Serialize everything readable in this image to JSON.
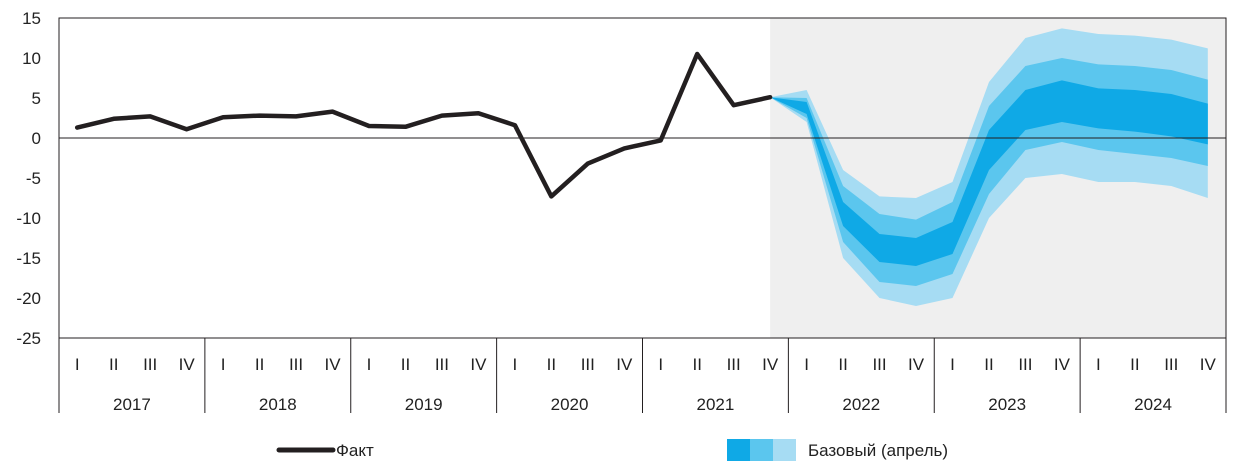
{
  "chart_data": {
    "type": "line",
    "y_ticks": [
      "15",
      "10",
      "5",
      "0",
      "-5",
      "-10",
      "-15",
      "-20",
      "-25"
    ],
    "ylim": [
      -25,
      15
    ],
    "quarter_labels": [
      "I",
      "II",
      "III",
      "IV"
    ],
    "years": [
      "2017",
      "2018",
      "2019",
      "2020",
      "2021",
      "2022",
      "2023",
      "2024"
    ],
    "grid": false,
    "forecast_region_start": "2021 IV",
    "series": [
      {
        "name": "Факт",
        "type": "line",
        "color": "#231f20",
        "x": [
          "2017 I",
          "2017 II",
          "2017 III",
          "2017 IV",
          "2018 I",
          "2018 II",
          "2018 III",
          "2018 IV",
          "2019 I",
          "2019 II",
          "2019 III",
          "2019 IV",
          "2020 I",
          "2020 II",
          "2020 III",
          "2020 IV",
          "2021 I",
          "2021 II",
          "2021 III",
          "2021 IV"
        ],
        "values": [
          1.3,
          2.4,
          2.7,
          1.1,
          2.6,
          2.8,
          2.7,
          3.3,
          1.5,
          1.4,
          2.8,
          3.1,
          1.6,
          -7.3,
          -3.2,
          -1.3,
          -0.3,
          10.5,
          4.1,
          5.1
        ]
      },
      {
        "name": "Базовый (апрель)",
        "type": "fan",
        "colors": [
          "#0fa9e6",
          "#5bc6ee",
          "#a6dcf3"
        ],
        "x": [
          "2021 IV",
          "2022 I",
          "2022 II",
          "2022 III",
          "2022 IV",
          "2023 I",
          "2023 II",
          "2023 III",
          "2023 IV",
          "2024 I",
          "2024 II",
          "2024 III",
          "2024 IV"
        ],
        "median": [
          5.1,
          3.6,
          -9.5,
          -14,
          -14.3,
          -12.5,
          -1.5,
          3.5,
          4.6,
          3.7,
          3.3,
          2.8,
          1.7
        ],
        "bands": [
          {
            "lower": [
              5.1,
              3.0,
              -11.0,
              -15.5,
              -16.0,
              -14.5,
              -4.0,
              1.0,
              2.0,
              1.2,
              0.8,
              0.2,
              -0.8
            ],
            "upper": [
              5.1,
              4.5,
              -8.0,
              -12.0,
              -12.5,
              -10.5,
              1.0,
              6.0,
              7.2,
              6.2,
              6.0,
              5.5,
              4.3
            ]
          },
          {
            "lower": [
              5.1,
              2.5,
              -13.0,
              -18.0,
              -18.5,
              -17.0,
              -7.0,
              -1.5,
              -0.5,
              -1.5,
              -2.0,
              -2.5,
              -3.5
            ],
            "upper": [
              5.1,
              5.0,
              -6.0,
              -9.5,
              -10.2,
              -8.0,
              4.0,
              9.0,
              10.0,
              9.2,
              9.0,
              8.5,
              7.3
            ]
          },
          {
            "lower": [
              5.1,
              2.0,
              -15.0,
              -20.0,
              -21.0,
              -20.0,
              -10.0,
              -5.0,
              -4.5,
              -5.5,
              -5.5,
              -6.0,
              -7.5
            ],
            "upper": [
              5.1,
              6.0,
              -4.0,
              -7.3,
              -7.5,
              -5.5,
              7.0,
              12.5,
              13.7,
              13.0,
              12.8,
              12.3,
              11.2
            ]
          }
        ]
      }
    ],
    "legend": [
      {
        "label": "Факт"
      },
      {
        "label": "Базовый (апрель)"
      }
    ]
  }
}
